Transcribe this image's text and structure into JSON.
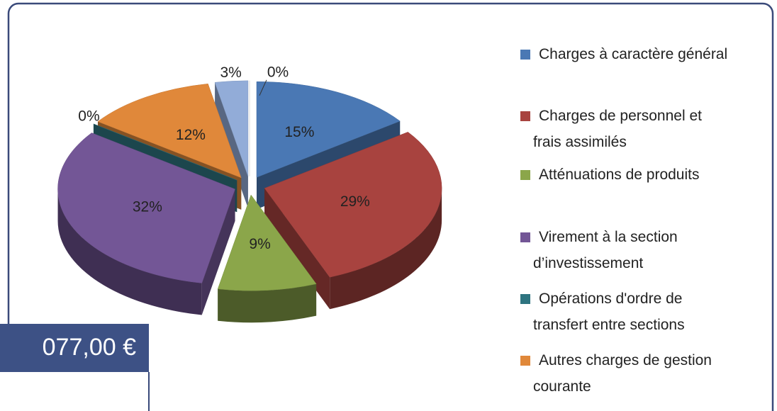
{
  "chart_data": {
    "type": "pie3d",
    "categories": [
      "Charges à caractère général",
      "Charges de personnel et frais assimilés",
      "Atténuations de produits",
      "Virement à la section d’investissement",
      "Opérations d'ordre de transfert entre sections",
      "Autres charges de gestion courante",
      null,
      null
    ],
    "values": [
      15,
      29,
      9,
      32,
      0,
      12,
      3,
      0
    ],
    "value_labels": [
      "15%",
      "29%",
      "9%",
      "32%",
      "0%",
      "12%",
      "3%",
      "0%"
    ],
    "colors": [
      "#4a78b4",
      "#a8433f",
      "#8ba64a",
      "#735696",
      "#2e7480",
      "#e0883a",
      "#92acd8",
      "#e6e6e6"
    ]
  },
  "overlay_amount": "077,00 €"
}
